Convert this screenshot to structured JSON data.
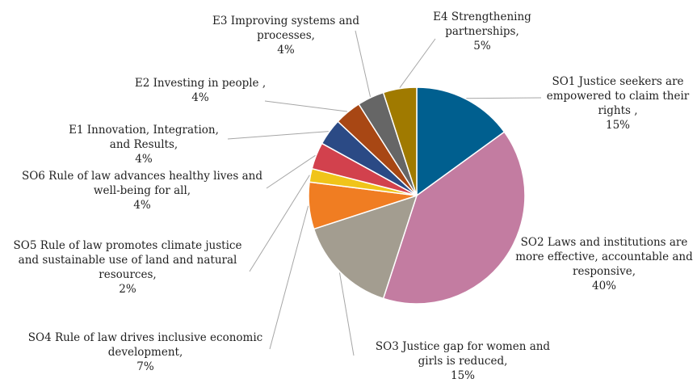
{
  "chart_data": {
    "type": "pie",
    "title": "",
    "slices": [
      {
        "lines": [
          "SO1 Justice seekers are",
          "empowered to claim their",
          "rights ,",
          "15%"
        ],
        "value": 15,
        "color": "#005f8f"
      },
      {
        "lines": [
          "SO2 Laws and institutions are",
          "more effective, accountable and",
          "responsive,",
          "40%"
        ],
        "value": 40,
        "color": "#c37ca1"
      },
      {
        "lines": [
          "SO3 Justice gap for women and",
          "girls is reduced,",
          "15%"
        ],
        "value": 15,
        "color": "#a39d90"
      },
      {
        "lines": [
          "SO4 Rule of law drives inclusive economic",
          "development,",
          "7%"
        ],
        "value": 7,
        "color": "#f07d22"
      },
      {
        "lines": [
          "SO5  Rule of law promotes climate justice",
          "and sustainable use of land and natural",
          "resources,",
          "2%"
        ],
        "value": 2,
        "color": "#f0c419"
      },
      {
        "lines": [
          "SO6 Rule of law advances healthy lives and",
          "well-being for all,",
          "4%"
        ],
        "value": 4,
        "color": "#d2414d"
      },
      {
        "lines": [
          "E1 Innovation, Integration,",
          "and Results,",
          "4%"
        ],
        "value": 4,
        "color": "#2b4a85"
      },
      {
        "lines": [
          "E2 Investing in people ,",
          "4%"
        ],
        "value": 4,
        "color": "#a84714"
      },
      {
        "lines": [
          "E3  Improving systems and",
          "processes,",
          "4%"
        ],
        "value": 4,
        "color": "#666666"
      },
      {
        "lines": [
          "E4  Strengthening",
          "partnerships,",
          "5%"
        ],
        "value": 5,
        "color": "#a07a00"
      }
    ]
  }
}
